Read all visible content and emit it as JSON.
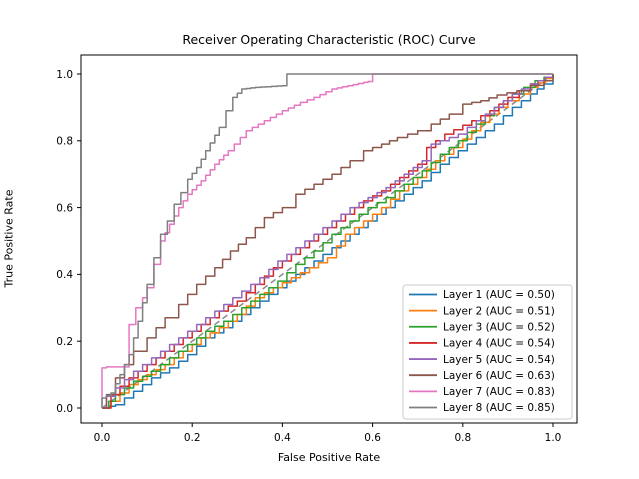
{
  "chart_data": {
    "type": "line",
    "subtype": "roc_step_curves",
    "title": "Receiver Operating Characteristic (ROC) Curve",
    "xlabel": "False Positive Rate",
    "ylabel": "True Positive Rate",
    "xlim": [
      -0.05,
      1.05
    ],
    "ylim": [
      -0.05,
      1.05
    ],
    "grid": false,
    "legend_position": "lower right",
    "x_ticks": [
      {
        "v": 0.0,
        "label": "0.0"
      },
      {
        "v": 0.2,
        "label": "0.2"
      },
      {
        "v": 0.4,
        "label": "0.4"
      },
      {
        "v": 0.6,
        "label": "0.6"
      },
      {
        "v": 0.8,
        "label": "0.8"
      },
      {
        "v": 1.0,
        "label": "1.0"
      }
    ],
    "y_ticks": [
      {
        "v": 0.0,
        "label": "0.0"
      },
      {
        "v": 0.2,
        "label": "0.2"
      },
      {
        "v": 0.4,
        "label": "0.4"
      },
      {
        "v": 0.6,
        "label": "0.6"
      },
      {
        "v": 0.8,
        "label": "0.8"
      },
      {
        "v": 1.0,
        "label": "1.0"
      }
    ],
    "reference_line": {
      "name": "chance-diagonal",
      "x": [
        0,
        1
      ],
      "y": [
        0,
        1
      ],
      "style": "dashed",
      "color": "#8a8a8a"
    },
    "series": [
      {
        "name": "Layer 1",
        "auc": 0.5,
        "legend_label": "Layer 1 (AUC = 0.50)",
        "color": "#1f77b4",
        "step": 0.02,
        "points": [
          [
            0,
            0
          ],
          [
            0.03,
            0.01
          ],
          [
            0.07,
            0.05
          ],
          [
            0.11,
            0.09
          ],
          [
            0.15,
            0.12
          ],
          [
            0.19,
            0.16
          ],
          [
            0.23,
            0.21
          ],
          [
            0.27,
            0.24
          ],
          [
            0.31,
            0.28
          ],
          [
            0.35,
            0.32
          ],
          [
            0.39,
            0.36
          ],
          [
            0.43,
            0.4
          ],
          [
            0.47,
            0.44
          ],
          [
            0.51,
            0.48
          ],
          [
            0.55,
            0.52
          ],
          [
            0.59,
            0.56
          ],
          [
            0.63,
            0.6
          ],
          [
            0.67,
            0.64
          ],
          [
            0.71,
            0.68
          ],
          [
            0.75,
            0.73
          ],
          [
            0.79,
            0.77
          ],
          [
            0.83,
            0.81
          ],
          [
            0.87,
            0.85
          ],
          [
            0.91,
            0.9
          ],
          [
            0.95,
            0.94
          ],
          [
            0.98,
            0.97
          ],
          [
            1,
            1
          ]
        ]
      },
      {
        "name": "Layer 2",
        "auc": 0.51,
        "legend_label": "Layer 2 (AUC = 0.51)",
        "color": "#ff7f0e",
        "step": 0.02,
        "points": [
          [
            0,
            0
          ],
          [
            0.02,
            0.02
          ],
          [
            0.06,
            0.07
          ],
          [
            0.1,
            0.1
          ],
          [
            0.14,
            0.13
          ],
          [
            0.18,
            0.17
          ],
          [
            0.22,
            0.21
          ],
          [
            0.26,
            0.24
          ],
          [
            0.3,
            0.28
          ],
          [
            0.34,
            0.33
          ],
          [
            0.38,
            0.36
          ],
          [
            0.42,
            0.39
          ],
          [
            0.46,
            0.42
          ],
          [
            0.5,
            0.45
          ],
          [
            0.54,
            0.52
          ],
          [
            0.58,
            0.56
          ],
          [
            0.62,
            0.6
          ],
          [
            0.66,
            0.65
          ],
          [
            0.7,
            0.69
          ],
          [
            0.74,
            0.74
          ],
          [
            0.78,
            0.78
          ],
          [
            0.82,
            0.83
          ],
          [
            0.86,
            0.88
          ],
          [
            0.9,
            0.92
          ],
          [
            0.95,
            0.96
          ],
          [
            1,
            1
          ]
        ]
      },
      {
        "name": "Layer 3",
        "auc": 0.52,
        "legend_label": "Layer 3 (AUC = 0.52)",
        "color": "#2ca02c",
        "step": 0.02,
        "points": [
          [
            0,
            0
          ],
          [
            0.03,
            0.04
          ],
          [
            0.07,
            0.08
          ],
          [
            0.11,
            0.11
          ],
          [
            0.15,
            0.15
          ],
          [
            0.19,
            0.19
          ],
          [
            0.23,
            0.23
          ],
          [
            0.27,
            0.26
          ],
          [
            0.31,
            0.3
          ],
          [
            0.35,
            0.34
          ],
          [
            0.39,
            0.38
          ],
          [
            0.43,
            0.43
          ],
          [
            0.47,
            0.47
          ],
          [
            0.51,
            0.52
          ],
          [
            0.55,
            0.56
          ],
          [
            0.59,
            0.6
          ],
          [
            0.63,
            0.63
          ],
          [
            0.67,
            0.67
          ],
          [
            0.71,
            0.71
          ],
          [
            0.75,
            0.76
          ],
          [
            0.79,
            0.8
          ],
          [
            0.83,
            0.85
          ],
          [
            0.87,
            0.9
          ],
          [
            0.91,
            0.94
          ],
          [
            0.96,
            0.98
          ],
          [
            1,
            1
          ]
        ]
      },
      {
        "name": "Layer 4",
        "auc": 0.54,
        "legend_label": "Layer 4 (AUC = 0.54)",
        "color": "#d62728",
        "step": 0.02,
        "points": [
          [
            0,
            0
          ],
          [
            0.02,
            0.04
          ],
          [
            0.06,
            0.09
          ],
          [
            0.1,
            0.13
          ],
          [
            0.14,
            0.17
          ],
          [
            0.18,
            0.21
          ],
          [
            0.22,
            0.25
          ],
          [
            0.26,
            0.29
          ],
          [
            0.3,
            0.32
          ],
          [
            0.34,
            0.37
          ],
          [
            0.38,
            0.42
          ],
          [
            0.42,
            0.46
          ],
          [
            0.46,
            0.5
          ],
          [
            0.5,
            0.54
          ],
          [
            0.54,
            0.58
          ],
          [
            0.58,
            0.62
          ],
          [
            0.62,
            0.65
          ],
          [
            0.66,
            0.69
          ],
          [
            0.7,
            0.73
          ],
          [
            0.72,
            0.78
          ],
          [
            0.76,
            0.82
          ],
          [
            0.82,
            0.86
          ],
          [
            0.86,
            0.89
          ],
          [
            0.9,
            0.93
          ],
          [
            0.95,
            0.97
          ],
          [
            1,
            1
          ]
        ]
      },
      {
        "name": "Layer 5",
        "auc": 0.54,
        "legend_label": "Layer 5 (AUC = 0.54)",
        "color": "#9467bd",
        "step": 0.02,
        "points": [
          [
            0,
            0
          ],
          [
            0.01,
            0.035
          ],
          [
            0.03,
            0.06
          ],
          [
            0.07,
            0.11
          ],
          [
            0.11,
            0.15
          ],
          [
            0.15,
            0.19
          ],
          [
            0.19,
            0.23
          ],
          [
            0.23,
            0.27
          ],
          [
            0.27,
            0.31
          ],
          [
            0.31,
            0.35
          ],
          [
            0.35,
            0.39
          ],
          [
            0.39,
            0.44
          ],
          [
            0.43,
            0.48
          ],
          [
            0.47,
            0.52
          ],
          [
            0.51,
            0.56
          ],
          [
            0.55,
            0.6
          ],
          [
            0.59,
            0.63
          ],
          [
            0.63,
            0.66
          ],
          [
            0.67,
            0.7
          ],
          [
            0.71,
            0.74
          ],
          [
            0.73,
            0.79
          ],
          [
            0.79,
            0.82
          ],
          [
            0.83,
            0.86
          ],
          [
            0.87,
            0.9
          ],
          [
            0.91,
            0.94
          ],
          [
            0.95,
            0.97
          ],
          [
            1,
            1
          ]
        ]
      },
      {
        "name": "Layer 6",
        "auc": 0.63,
        "legend_label": "Layer 6 (AUC = 0.63)",
        "color": "#8c564b",
        "step": 0.022,
        "points": [
          [
            0,
            0
          ],
          [
            0.01,
            0.04
          ],
          [
            0.03,
            0.09
          ],
          [
            0.05,
            0.13
          ],
          [
            0.07,
            0.17
          ],
          [
            0.1,
            0.21
          ],
          [
            0.14,
            0.27
          ],
          [
            0.17,
            0.31
          ],
          [
            0.21,
            0.37
          ],
          [
            0.25,
            0.42
          ],
          [
            0.285,
            0.47
          ],
          [
            0.32,
            0.51
          ],
          [
            0.36,
            0.57
          ],
          [
            0.4,
            0.6
          ],
          [
            0.43,
            0.64
          ],
          [
            0.47,
            0.67
          ],
          [
            0.51,
            0.7
          ],
          [
            0.55,
            0.74
          ],
          [
            0.58,
            0.77
          ],
          [
            0.62,
            0.79
          ],
          [
            0.655,
            0.81
          ],
          [
            0.7,
            0.83
          ],
          [
            0.73,
            0.85
          ],
          [
            0.77,
            0.88
          ],
          [
            0.8,
            0.91
          ],
          [
            0.84,
            0.92
          ],
          [
            0.876,
            0.937
          ],
          [
            0.92,
            0.95
          ],
          [
            0.95,
            0.966
          ],
          [
            0.98,
            0.98
          ],
          [
            1,
            1
          ]
        ]
      },
      {
        "name": "Layer 7",
        "auc": 0.83,
        "legend_label": "Layer 7 (AUC = 0.83)",
        "color": "#e377c2",
        "step": 0.012,
        "points": [
          [
            0,
            0
          ],
          [
            0,
            0.12
          ],
          [
            0.01,
            0.123
          ],
          [
            0.047,
            0.123
          ],
          [
            0.06,
            0.25
          ],
          [
            0.075,
            0.3
          ],
          [
            0.09,
            0.33
          ],
          [
            0.1,
            0.36
          ],
          [
            0.115,
            0.43
          ],
          [
            0.13,
            0.5
          ],
          [
            0.15,
            0.55
          ],
          [
            0.17,
            0.6
          ],
          [
            0.19,
            0.64
          ],
          [
            0.22,
            0.68
          ],
          [
            0.25,
            0.73
          ],
          [
            0.28,
            0.77
          ],
          [
            0.32,
            0.83
          ],
          [
            0.36,
            0.86
          ],
          [
            0.4,
            0.89
          ],
          [
            0.44,
            0.915
          ],
          [
            0.47,
            0.93
          ],
          [
            0.51,
            0.955
          ],
          [
            0.545,
            0.965
          ],
          [
            0.58,
            0.975
          ],
          [
            0.6,
            0.98
          ],
          [
            0.6,
            1.0
          ],
          [
            1,
            1
          ]
        ]
      },
      {
        "name": "Layer 8",
        "auc": 0.85,
        "legend_label": "Layer 8 (AUC = 0.85)",
        "color": "#7f7f7f",
        "step": 0.012,
        "points": [
          [
            0,
            0
          ],
          [
            0,
            0.03
          ],
          [
            0.02,
            0.045
          ],
          [
            0.04,
            0.1
          ],
          [
            0.06,
            0.16
          ],
          [
            0.08,
            0.26
          ],
          [
            0.1,
            0.37
          ],
          [
            0.115,
            0.45
          ],
          [
            0.13,
            0.52
          ],
          [
            0.145,
            0.56
          ],
          [
            0.16,
            0.61
          ],
          [
            0.175,
            0.645
          ],
          [
            0.19,
            0.685
          ],
          [
            0.21,
            0.72
          ],
          [
            0.23,
            0.77
          ],
          [
            0.26,
            0.84
          ],
          [
            0.275,
            0.89
          ],
          [
            0.29,
            0.93
          ],
          [
            0.31,
            0.955
          ],
          [
            0.34,
            0.96
          ],
          [
            0.4,
            0.965
          ],
          [
            0.41,
            1.0
          ],
          [
            1,
            1
          ]
        ]
      }
    ]
  },
  "style": {
    "background": "#ffffff",
    "spine_color": "#000000",
    "text_color": "#000000",
    "legend_border": "#cccccc",
    "legend_background": "#ffffff"
  }
}
